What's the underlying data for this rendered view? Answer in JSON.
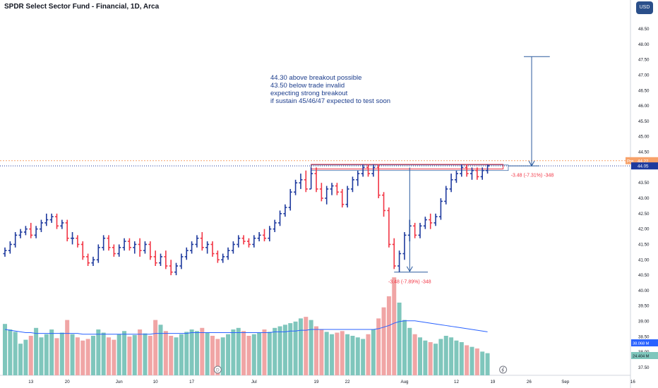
{
  "header": {
    "title": "SPDR Select Sector Fund - Financial, 1D, Arca",
    "currency": "USD"
  },
  "note_lines": [
    "44.30 above breakout possible",
    "43.50 below trade invalid",
    "expecting strong breakout",
    "if sustain 45/46/47 expected to test soon"
  ],
  "annotations": {
    "drop_label": "-3.48 (-7.89%) -348",
    "target_label": "-3.48 (-7.31%) -348"
  },
  "price_tags": {
    "pre_label": "Pre",
    "pre_value": "44.22",
    "last_value": "44.05",
    "volume_value": "38.068 M",
    "volume_ma_value": "24.404 M"
  },
  "marker_labels": {
    "dividend": "D"
  },
  "colors": {
    "up": "#1e3a9e",
    "down": "#f23645",
    "volume_up": "#7fc6bc",
    "volume_down": "#f0a5a5",
    "volume_ma": "#2962ff",
    "annotation_line": "#2a5a9e",
    "pre_line": "#f7a26a",
    "last_line": "#1e3a9e",
    "ccy_badge": "#2a4f8a"
  },
  "chart_data": {
    "type": "ohlc",
    "title": "SPDR Select Sector Fund - Financial, 1D, Arca",
    "y_axis": {
      "min": 37.5,
      "max": 49.0,
      "position": "right",
      "ticks": [
        "37.50",
        "38.00",
        "38.50",
        "39.00",
        "39.50",
        "40.00",
        "40.50",
        "41.00",
        "41.50",
        "42.00",
        "42.50",
        "43.00",
        "43.50",
        "44.00",
        "44.50",
        "45.00",
        "45.50",
        "46.00",
        "46.50",
        "47.00",
        "47.50",
        "48.00",
        "48.50"
      ]
    },
    "x_axis": {
      "ticks": [
        {
          "label": "13",
          "i": 5
        },
        {
          "label": "20",
          "i": 12
        },
        {
          "label": "Jun",
          "i": 22
        },
        {
          "label": "10",
          "i": 29
        },
        {
          "label": "17",
          "i": 36
        },
        {
          "label": "Jul",
          "i": 48
        },
        {
          "label": "19",
          "i": 60
        },
        {
          "label": "22",
          "i": 66
        },
        {
          "label": "Aug",
          "i": 77
        },
        {
          "label": "12",
          "i": 87
        },
        {
          "label": "19",
          "i": 94
        },
        {
          "label": "26",
          "i": 101
        },
        {
          "label": "Sep",
          "i": 108
        },
        {
          "label": "16",
          "i": 121
        }
      ]
    },
    "bars": [
      [
        41.2,
        41.4,
        41.1,
        41.3
      ],
      [
        41.3,
        41.6,
        41.2,
        41.5
      ],
      [
        41.5,
        41.9,
        41.4,
        41.8
      ],
      [
        41.8,
        42.0,
        41.7,
        41.9
      ],
      [
        41.9,
        42.1,
        41.8,
        42.0
      ],
      [
        42.0,
        42.2,
        41.7,
        41.8
      ],
      [
        41.8,
        42.1,
        41.7,
        42.0
      ],
      [
        42.0,
        42.3,
        41.9,
        42.2
      ],
      [
        42.2,
        42.5,
        42.1,
        42.3
      ],
      [
        42.3,
        42.5,
        42.2,
        42.4
      ],
      [
        42.4,
        42.5,
        42.0,
        42.1
      ],
      [
        42.1,
        42.3,
        42.0,
        42.2
      ],
      [
        42.2,
        42.3,
        41.6,
        41.7
      ],
      [
        41.7,
        41.9,
        41.5,
        41.7
      ],
      [
        41.7,
        41.8,
        41.4,
        41.5
      ],
      [
        41.5,
        41.6,
        41.0,
        41.1
      ],
      [
        41.1,
        41.2,
        40.8,
        40.9
      ],
      [
        40.9,
        41.1,
        40.8,
        41.0
      ],
      [
        41.0,
        41.5,
        40.9,
        41.4
      ],
      [
        41.4,
        41.8,
        41.3,
        41.7
      ],
      [
        41.7,
        41.8,
        41.3,
        41.4
      ],
      [
        41.4,
        41.5,
        41.1,
        41.2
      ],
      [
        41.2,
        41.5,
        41.1,
        41.4
      ],
      [
        41.4,
        41.7,
        41.3,
        41.6
      ],
      [
        41.6,
        41.7,
        41.3,
        41.4
      ],
      [
        41.4,
        41.6,
        41.2,
        41.5
      ],
      [
        41.5,
        41.7,
        41.1,
        41.3
      ],
      [
        41.3,
        41.6,
        41.2,
        41.5
      ],
      [
        41.5,
        41.6,
        41.0,
        41.1
      ],
      [
        41.1,
        41.3,
        40.8,
        40.9
      ],
      [
        40.9,
        41.2,
        40.8,
        41.1
      ],
      [
        41.1,
        41.3,
        40.7,
        40.8
      ],
      [
        40.8,
        41.0,
        40.5,
        40.6
      ],
      [
        40.6,
        40.9,
        40.5,
        40.8
      ],
      [
        40.8,
        41.2,
        40.7,
        41.1
      ],
      [
        41.1,
        41.4,
        41.0,
        41.3
      ],
      [
        41.3,
        41.6,
        41.2,
        41.5
      ],
      [
        41.5,
        41.8,
        41.4,
        41.7
      ],
      [
        41.7,
        41.9,
        41.3,
        41.4
      ],
      [
        41.4,
        41.6,
        41.2,
        41.5
      ],
      [
        41.5,
        41.6,
        41.1,
        41.2
      ],
      [
        41.2,
        41.3,
        40.9,
        41.0
      ],
      [
        41.0,
        41.2,
        40.9,
        41.1
      ],
      [
        41.1,
        41.4,
        41.0,
        41.3
      ],
      [
        41.3,
        41.6,
        41.2,
        41.5
      ],
      [
        41.5,
        41.8,
        41.4,
        41.7
      ],
      [
        41.7,
        41.8,
        41.5,
        41.6
      ],
      [
        41.6,
        41.7,
        41.4,
        41.5
      ],
      [
        41.5,
        41.8,
        41.4,
        41.7
      ],
      [
        41.7,
        41.9,
        41.6,
        41.8
      ],
      [
        41.8,
        42.0,
        41.6,
        41.7
      ],
      [
        41.7,
        42.1,
        41.6,
        42.0
      ],
      [
        42.0,
        42.3,
        41.9,
        42.2
      ],
      [
        42.2,
        42.6,
        42.1,
        42.5
      ],
      [
        42.5,
        42.8,
        42.4,
        42.7
      ],
      [
        42.7,
        43.3,
        42.6,
        43.2
      ],
      [
        43.2,
        43.6,
        43.1,
        43.5
      ],
      [
        43.5,
        43.8,
        43.3,
        43.6
      ],
      [
        43.6,
        43.9,
        43.2,
        43.3
      ],
      [
        43.3,
        44.0,
        43.3,
        43.8
      ],
      [
        43.8,
        44.0,
        43.2,
        43.3
      ],
      [
        43.3,
        43.5,
        42.9,
        43.0
      ],
      [
        43.0,
        43.4,
        42.8,
        43.3
      ],
      [
        43.3,
        43.5,
        43.1,
        43.4
      ],
      [
        43.4,
        43.5,
        43.1,
        43.2
      ],
      [
        43.2,
        43.3,
        42.7,
        42.8
      ],
      [
        42.8,
        43.4,
        42.7,
        43.3
      ],
      [
        43.3,
        43.7,
        43.2,
        43.6
      ],
      [
        43.6,
        43.9,
        43.4,
        43.8
      ],
      [
        43.8,
        44.1,
        43.7,
        44.0
      ],
      [
        44.0,
        44.1,
        43.7,
        43.8
      ],
      [
        43.8,
        44.1,
        43.7,
        44.0
      ],
      [
        44.0,
        44.1,
        43.0,
        43.1
      ],
      [
        43.1,
        43.2,
        42.4,
        42.6
      ],
      [
        42.6,
        42.7,
        41.4,
        41.5
      ],
      [
        41.5,
        41.7,
        40.7,
        40.8
      ],
      [
        40.8,
        41.3,
        40.6,
        41.2
      ],
      [
        41.2,
        41.9,
        41.0,
        41.8
      ],
      [
        41.8,
        42.3,
        41.6,
        42.1
      ],
      [
        42.1,
        42.2,
        41.7,
        41.8
      ],
      [
        41.8,
        42.2,
        41.7,
        42.1
      ],
      [
        42.1,
        42.4,
        42.0,
        42.3
      ],
      [
        42.3,
        42.5,
        42.0,
        42.2
      ],
      [
        42.2,
        42.5,
        42.1,
        42.4
      ],
      [
        42.4,
        43.0,
        42.3,
        42.9
      ],
      [
        42.9,
        43.4,
        42.8,
        43.3
      ],
      [
        43.3,
        43.8,
        43.2,
        43.6
      ],
      [
        43.6,
        43.9,
        43.5,
        43.8
      ],
      [
        43.8,
        44.1,
        43.7,
        44.0
      ],
      [
        44.0,
        44.1,
        43.7,
        43.8
      ],
      [
        43.8,
        44.0,
        43.6,
        43.9
      ],
      [
        43.9,
        44.0,
        43.6,
        43.7
      ],
      [
        43.7,
        44.0,
        43.6,
        43.9
      ],
      [
        43.9,
        44.1,
        43.8,
        44.05
      ]
    ],
    "volume": [
      65,
      58,
      55,
      40,
      45,
      50,
      60,
      48,
      52,
      58,
      47,
      54,
      70,
      52,
      48,
      44,
      46,
      50,
      58,
      54,
      48,
      45,
      52,
      56,
      49,
      51,
      58,
      53,
      50,
      70,
      64,
      56,
      50,
      48,
      52,
      55,
      58,
      56,
      60,
      54,
      50,
      46,
      48,
      52,
      58,
      60,
      56,
      50,
      52,
      54,
      58,
      55,
      60,
      62,
      64,
      66,
      68,
      72,
      74,
      70,
      62,
      58,
      55,
      52,
      54,
      56,
      52,
      50,
      48,
      46,
      52,
      58,
      72,
      86,
      100,
      124,
      92,
      70,
      60,
      52,
      48,
      44,
      42,
      40,
      46,
      50,
      48,
      44,
      42,
      38,
      36,
      34,
      30,
      28
    ],
    "volume_ma": [
      58,
      57,
      56,
      55,
      54,
      54,
      53,
      53,
      53,
      53,
      53,
      53,
      53,
      53,
      53,
      52,
      52,
      52,
      52,
      52,
      52,
      52,
      52,
      52,
      52,
      52,
      52,
      52,
      52,
      53,
      53,
      53,
      53,
      53,
      53,
      53,
      54,
      54,
      54,
      54,
      54,
      54,
      54,
      54,
      54,
      54,
      54,
      54,
      54,
      54,
      54,
      54,
      55,
      55,
      55,
      56,
      56,
      57,
      57,
      58,
      58,
      58,
      58,
      58,
      58,
      58,
      58,
      58,
      58,
      58,
      58,
      58,
      59,
      61,
      63,
      66,
      68,
      69,
      69,
      69,
      68,
      67,
      66,
      65,
      64,
      63,
      62,
      61,
      60,
      59,
      58,
      57,
      56,
      55
    ],
    "levels": {
      "pre_market": 44.22,
      "last_close": 44.05
    }
  }
}
